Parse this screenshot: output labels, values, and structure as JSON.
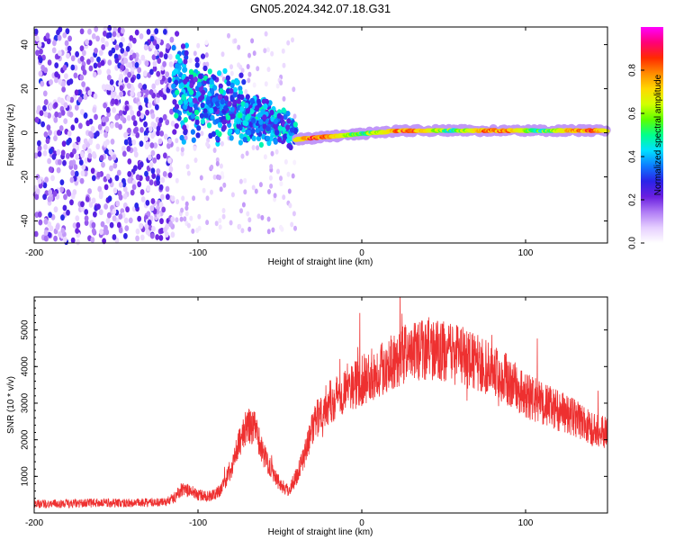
{
  "figure": {
    "title": "GN05.2024.342.07.18.G31"
  },
  "chart_data": [
    {
      "type": "heatmap",
      "title": "GN05.2024.342.07.18.G31",
      "xlabel": "Height of straight line (km)",
      "ylabel": "Frequency (Hz)",
      "xlim": [
        -200,
        150
      ],
      "ylim": [
        -50,
        48
      ],
      "x_ticks": [
        -200,
        -100,
        0,
        100
      ],
      "y_ticks": [
        -40,
        -20,
        0,
        20,
        40
      ],
      "colorbar": {
        "label": "Normalized spectral amplitude",
        "range": [
          0,
          1
        ],
        "ticks": [
          0.0,
          0.2,
          0.4,
          0.6,
          0.8
        ],
        "colormap": [
          "#ffffff",
          "#e6cfff",
          "#b07cf5",
          "#6a1fe0",
          "#2a23e8",
          "#0d7bff",
          "#00e1ff",
          "#00ff8c",
          "#5cff00",
          "#d2ff00",
          "#ffd800",
          "#ff8a00",
          "#ff2a00",
          "#ff0078",
          "#ff00ff"
        ]
      },
      "regions": [
        {
          "name": "noise",
          "x_range": [
            -200,
            -115
          ],
          "freq_spread": 50,
          "amplitude": [
            0.05,
            0.3
          ]
        },
        {
          "name": "sparse",
          "x_range": [
            -115,
            -40
          ],
          "freq_spread": 45,
          "amplitude": [
            0.02,
            0.12
          ]
        },
        {
          "name": "transition",
          "x_range": [
            -115,
            -40
          ],
          "freq_center": [
            20,
            0
          ],
          "freq_spread": [
            10,
            3
          ],
          "amplitude": [
            0.2,
            0.5
          ]
        },
        {
          "name": "signal",
          "x_range": [
            -40,
            150
          ],
          "freq_center": [
            -3,
            1
          ],
          "freq_spread": 2,
          "amplitude": [
            0.4,
            0.95
          ]
        }
      ]
    },
    {
      "type": "line",
      "xlabel": "Height of straight line (km)",
      "ylabel": "SNR (10 * v/v)",
      "xlim": [
        -200,
        150
      ],
      "ylim": [
        0,
        5900
      ],
      "x_ticks": [
        -200,
        -100,
        0,
        100
      ],
      "y_ticks": [
        1000,
        2000,
        3000,
        4000,
        5000
      ],
      "color": "#ee3030",
      "series": [
        {
          "x": [
            -200,
            -180,
            -160,
            -140,
            -120,
            -115,
            -110,
            -105,
            -100,
            -95,
            -90,
            -85,
            -80,
            -75,
            -70,
            -65,
            -60,
            -55,
            -50,
            -45,
            -40,
            -35,
            -30,
            -25,
            -20,
            -15,
            -10,
            -5,
            0,
            10,
            20,
            30,
            40,
            50,
            60,
            70,
            80,
            90,
            100,
            110,
            120,
            130,
            140,
            150
          ],
          "y": [
            250,
            250,
            280,
            270,
            300,
            400,
            650,
            600,
            500,
            450,
            500,
            700,
            1200,
            1900,
            2400,
            2300,
            1600,
            1200,
            800,
            600,
            1000,
            1600,
            2300,
            2800,
            3000,
            3200,
            3400,
            3500,
            3600,
            3900,
            4200,
            4400,
            4500,
            4400,
            4300,
            4100,
            3900,
            3600,
            3200,
            3000,
            2800,
            2600,
            2300,
            2200
          ]
        }
      ]
    }
  ]
}
